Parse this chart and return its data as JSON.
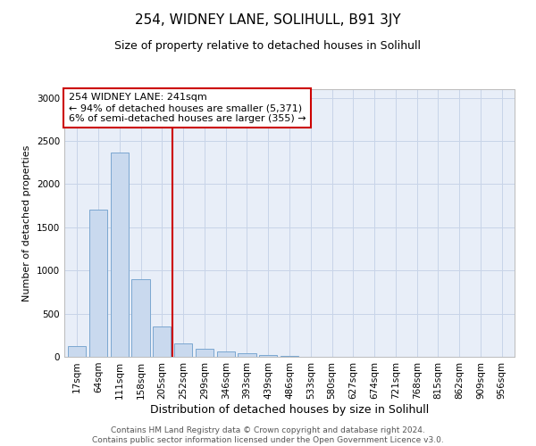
{
  "title": "254, WIDNEY LANE, SOLIHULL, B91 3JY",
  "subtitle": "Size of property relative to detached houses in Solihull",
  "xlabel": "Distribution of detached houses by size in Solihull",
  "ylabel": "Number of detached properties",
  "footer_line1": "Contains HM Land Registry data © Crown copyright and database right 2024.",
  "footer_line2": "Contains public sector information licensed under the Open Government Licence v3.0.",
  "categories": [
    "17sqm",
    "64sqm",
    "111sqm",
    "158sqm",
    "205sqm",
    "252sqm",
    "299sqm",
    "346sqm",
    "393sqm",
    "439sqm",
    "486sqm",
    "533sqm",
    "580sqm",
    "627sqm",
    "674sqm",
    "721sqm",
    "768sqm",
    "815sqm",
    "862sqm",
    "909sqm",
    "956sqm"
  ],
  "values": [
    120,
    1700,
    2370,
    900,
    350,
    150,
    90,
    65,
    40,
    20,
    10,
    5,
    3,
    0,
    0,
    0,
    0,
    0,
    0,
    0,
    0
  ],
  "bar_color": "#c9d9ee",
  "bar_edge_color": "#7ba7d0",
  "grid_color": "#c8d4e8",
  "background_color": "#e8eef8",
  "vline_x": 4.5,
  "vline_color": "#cc0000",
  "annotation_text": "254 WIDNEY LANE: 241sqm\n← 94% of detached houses are smaller (5,371)\n6% of semi-detached houses are larger (355) →",
  "annotation_box_color": "#cc0000",
  "ylim": [
    0,
    3100
  ],
  "yticks": [
    0,
    500,
    1000,
    1500,
    2000,
    2500,
    3000
  ],
  "title_fontsize": 11,
  "subtitle_fontsize": 9,
  "xlabel_fontsize": 9,
  "ylabel_fontsize": 8,
  "tick_fontsize": 7.5,
  "annotation_fontsize": 8,
  "footer_fontsize": 6.5
}
